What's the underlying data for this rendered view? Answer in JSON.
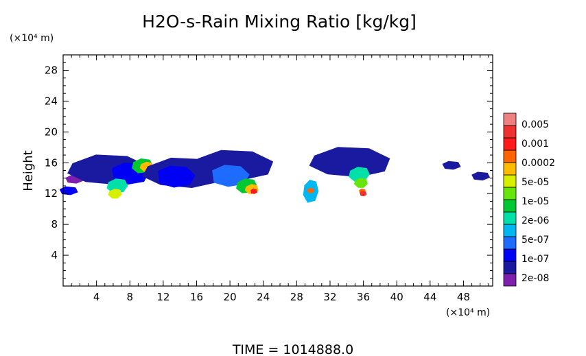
{
  "chart_data": {
    "type": "heatmap",
    "title": "H2O-s-Rain Mixing Ratio [kg/kg]",
    "ylabel": "Height",
    "xlabel": "",
    "x_unit_label": "(×10⁴ m)",
    "y_unit_label": "(×10⁴ m)",
    "footer": "TIME  =  1014888.0",
    "xlim": [
      0,
      51.5
    ],
    "ylim": [
      0,
      30
    ],
    "xticks": [
      4,
      8,
      12,
      16,
      20,
      24,
      28,
      32,
      36,
      40,
      44,
      48
    ],
    "yticks": [
      4,
      8,
      12,
      16,
      20,
      24,
      28
    ],
    "grid": false,
    "colorbar": {
      "position": "right",
      "labels": [
        "0.005",
        "0.001",
        "0.0002",
        "5e-05",
        "1e-05",
        "2e-06",
        "5e-07",
        "1e-07",
        "2e-08"
      ],
      "colors": [
        "#7f1fae",
        "#1a1aa0",
        "#0000f5",
        "#1e6cff",
        "#00b7f2",
        "#00e0a8",
        "#00c832",
        "#66e60a",
        "#d9ef00",
        "#ffbb00",
        "#ff6400",
        "#ff1a1a",
        "#ee3030",
        "#f08080"
      ]
    },
    "clouds": [
      {
        "region": "x 0-4",
        "x": 0.6,
        "y": 12.3,
        "level": 2
      },
      {
        "region": "x 0-4",
        "x": 1.3,
        "y": 13.8,
        "level": 0
      },
      {
        "region": "x 4-12",
        "x": 5.5,
        "y": 15.0,
        "level": 1
      },
      {
        "region": "x 4-12",
        "x": 8.0,
        "y": 14.6,
        "level": 2
      },
      {
        "region": "x 4-12",
        "x": 6.5,
        "y": 13.0,
        "level": 5
      },
      {
        "region": "x 4-12",
        "x": 6.2,
        "y": 12.0,
        "level": 8
      },
      {
        "region": "x 4-12",
        "x": 9.5,
        "y": 15.6,
        "level": 6
      },
      {
        "region": "x 4-12",
        "x": 10.0,
        "y": 15.5,
        "level": 9
      },
      {
        "region": "x 12-18",
        "x": 14.5,
        "y": 14.6,
        "level": 1
      },
      {
        "region": "x 12-18",
        "x": 13.5,
        "y": 14.2,
        "level": 2
      },
      {
        "region": "x 18-26",
        "x": 20.5,
        "y": 15.6,
        "level": 1
      },
      {
        "region": "x 18-26",
        "x": 20.0,
        "y": 14.3,
        "level": 3
      },
      {
        "region": "x 18-26",
        "x": 22.0,
        "y": 13.0,
        "level": 6
      },
      {
        "region": "x 18-26",
        "x": 22.6,
        "y": 12.6,
        "level": 9
      },
      {
        "region": "x 18-26",
        "x": 22.8,
        "y": 12.3,
        "level": 11
      },
      {
        "region": "x 26-32",
        "x": 29.7,
        "y": 12.3,
        "level": 4
      },
      {
        "region": "x 26-32",
        "x": 29.6,
        "y": 12.4,
        "level": 10
      },
      {
        "region": "x 32-42",
        "x": 34.5,
        "y": 16.0,
        "level": 1
      },
      {
        "region": "x 32-42",
        "x": 35.5,
        "y": 14.5,
        "level": 5
      },
      {
        "region": "x 32-42",
        "x": 35.7,
        "y": 13.4,
        "level": 7
      },
      {
        "region": "x 32-42",
        "x": 35.8,
        "y": 12.3,
        "level": 10
      },
      {
        "region": "x 32-42",
        "x": 35.9,
        "y": 12.0,
        "level": 12
      },
      {
        "region": "x 44-51",
        "x": 46.5,
        "y": 15.6,
        "level": 1
      },
      {
        "region": "x 44-51",
        "x": 50.0,
        "y": 14.2,
        "level": 1
      }
    ]
  }
}
